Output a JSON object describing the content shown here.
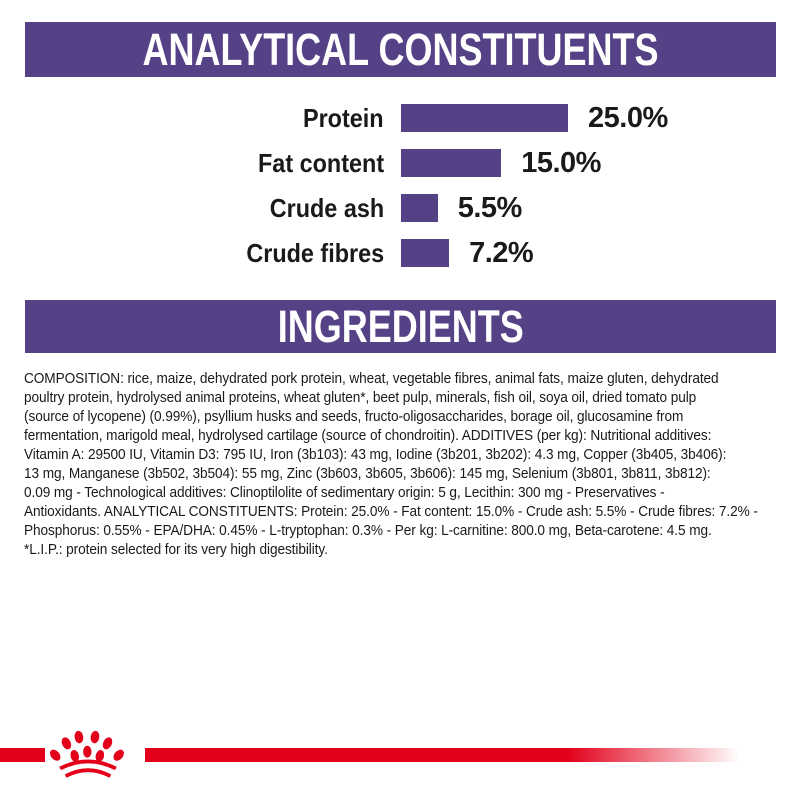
{
  "colors": {
    "purple": "#554286",
    "red": "#e2001a",
    "text": "#1a1a1a",
    "header_text": "#ffffff"
  },
  "header_analytical": {
    "title": "ANALYTICAL CONSTITUENTS"
  },
  "header_ingredients": {
    "title": "INGREDIENTS"
  },
  "chart_data": {
    "type": "bar",
    "orientation": "horizontal",
    "title": "ANALYTICAL CONSTITUENTS",
    "categories": [
      "Protein",
      "Fat content",
      "Crude ash",
      "Crude fibres"
    ],
    "values": [
      25.0,
      15.0,
      5.5,
      7.2
    ],
    "value_labels": [
      "25.0%",
      "15.0%",
      "5.5%",
      "7.2%"
    ],
    "unit": "%",
    "bar_color": "#554286",
    "xlim": [
      0,
      25
    ],
    "axis": "none",
    "grid": false,
    "legend": "none",
    "value_label_position": "right-of-bar"
  },
  "composition": {
    "text": "COMPOSITION: rice, maize, dehydrated pork protein, wheat, vegetable fibres, animal fats, maize gluten, dehydrated\npoultry protein, hydrolysed animal proteins, wheat gluten*, beet pulp, minerals, fish oil, soya oil, dried tomato pulp\n(source of lycopene) (0.99%), psyllium husks and seeds, fructo-oligosaccharides, borage oil, glucosamine from\nfermentation, marigold meal, hydrolysed cartilage (source of chondroitin). ADDITIVES (per kg): Nutritional additives:\nVitamin A: 29500 IU, Vitamin D3: 795 IU, Iron (3b103): 43 mg, Iodine (3b201, 3b202): 4.3 mg, Copper (3b405, 3b406):\n13 mg, Manganese (3b502, 3b504): 55 mg, Zinc (3b603, 3b605, 3b606): 145 mg, Selenium (3b801, 3b811, 3b812):\n0.09 mg - Technological additives: Clinoptilolite of sedimentary origin: 5 g, Lecithin: 300 mg - Preservatives -\nAntioxidants. ANALYTICAL CONSTITUENTS: Protein: 25.0% - Fat content: 15.0% - Crude ash: 5.5% - Crude fibres: 7.2% -\nPhosphorus: 0.55% - EPA/DHA: 0.45% - L-tryptophan: 0.3% - Per kg: L-carnitine: 800.0 mg, Beta-carotene: 4.5 mg.\n*L.I.P.: protein selected for its very high digestibility."
  },
  "footer": {
    "logo": "royal-canin-crown-paw-logo",
    "line_color": "#e2001a"
  }
}
